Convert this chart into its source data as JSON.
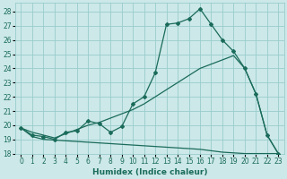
{
  "xlabel": "Humidex (Indice chaleur)",
  "background_color": "#cce8e8",
  "grid_color": "#99cccc",
  "line_color": "#1a6b5a",
  "xlim": [
    -0.5,
    23.5
  ],
  "ylim": [
    18,
    28.6
  ],
  "yticks": [
    18,
    19,
    20,
    21,
    22,
    23,
    24,
    25,
    26,
    27,
    28
  ],
  "xticks": [
    0,
    1,
    2,
    3,
    4,
    5,
    6,
    7,
    8,
    9,
    10,
    11,
    12,
    13,
    14,
    15,
    16,
    17,
    18,
    19,
    20,
    21,
    22,
    23
  ],
  "line1_x": [
    0,
    1,
    2,
    3,
    4,
    5,
    6,
    7,
    8,
    9,
    10,
    11,
    12,
    13,
    14,
    15,
    16,
    17,
    18,
    19,
    20,
    21,
    22,
    23
  ],
  "line1_y": [
    19.8,
    19.3,
    19.2,
    19.0,
    19.5,
    19.6,
    20.3,
    20.1,
    19.5,
    19.9,
    21.5,
    22.0,
    23.7,
    27.1,
    27.2,
    27.5,
    28.2,
    27.1,
    26.0,
    25.2,
    24.0,
    22.2,
    19.3,
    18.0
  ],
  "line2_x": [
    0,
    1,
    2,
    3,
    4,
    5,
    6,
    7,
    8,
    9,
    10,
    11,
    12,
    13,
    14,
    15,
    16,
    17,
    18,
    19,
    20,
    21,
    22,
    23
  ],
  "line2_y": [
    19.8,
    19.5,
    19.3,
    19.1,
    19.4,
    19.7,
    20.0,
    20.2,
    20.5,
    20.8,
    21.1,
    21.5,
    22.0,
    22.5,
    23.0,
    23.5,
    24.0,
    24.3,
    24.6,
    24.9,
    24.0,
    22.2,
    19.3,
    18.0
  ],
  "line3_x": [
    0,
    1,
    2,
    3,
    4,
    5,
    6,
    7,
    8,
    9,
    10,
    11,
    12,
    13,
    14,
    15,
    16,
    17,
    18,
    19,
    20,
    21,
    22,
    23
  ],
  "line3_y": [
    19.8,
    19.2,
    19.0,
    18.95,
    18.9,
    18.85,
    18.8,
    18.75,
    18.7,
    18.65,
    18.6,
    18.55,
    18.5,
    18.45,
    18.4,
    18.35,
    18.3,
    18.2,
    18.1,
    18.05,
    18.0,
    18.0,
    18.0,
    18.0
  ]
}
